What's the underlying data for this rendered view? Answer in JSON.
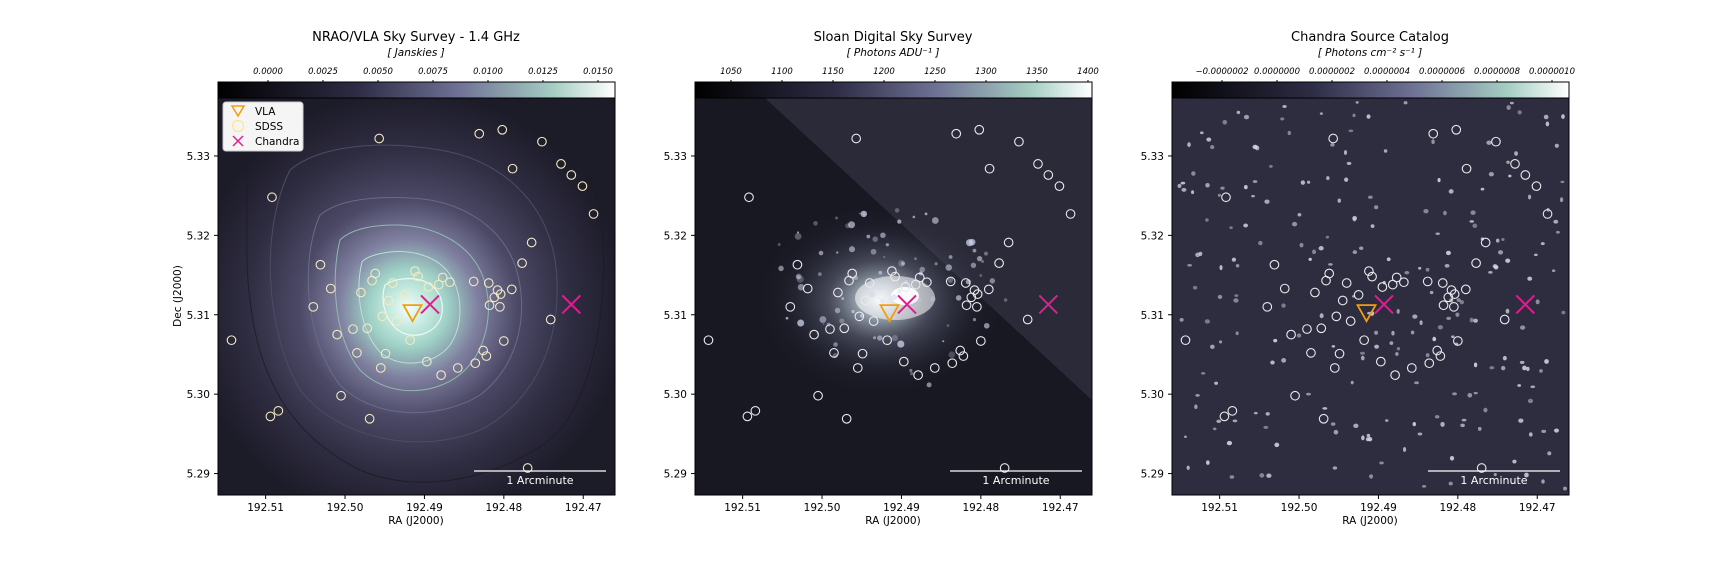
{
  "figure": {
    "shared": {
      "scalebar_label": "1 Arcminute"
    }
  },
  "panels": [
    {
      "id": "vla",
      "title": "NRAO/VLA Sky Survey - 1.4 GHz",
      "unit_label": "[ Janskies ]",
      "colorbar_ticks": [
        "0.0000",
        "0.0025",
        "0.0050",
        "0.0075",
        "0.0100",
        "0.0125",
        "0.0150"
      ],
      "ra_ticks": [
        "192.51",
        "192.50",
        "192.49",
        "192.48",
        "192.47"
      ],
      "dec_ticks": [
        "5.33",
        "5.32",
        "5.31",
        "5.30",
        "5.29"
      ],
      "xlabel": "RA (J2000)",
      "ylabel": "Dec (J2000)",
      "legend": [
        {
          "label": "VLA",
          "marker": "triangle-down",
          "color": "#f59e0b"
        },
        {
          "label": "SDSS",
          "marker": "circle",
          "color": "#fde68a"
        },
        {
          "label": "Chandra",
          "marker": "x",
          "color": "#e11d8f"
        }
      ]
    },
    {
      "id": "sdss",
      "title": "Sloan Digital Sky Survey",
      "unit_label": "[ Photons ADU⁻¹ ]",
      "colorbar_ticks": [
        "1050",
        "1100",
        "1150",
        "1200",
        "1250",
        "1300",
        "1350",
        "1400"
      ],
      "ra_ticks": [
        "192.51",
        "192.50",
        "192.49",
        "192.48",
        "192.47"
      ],
      "dec_ticks": [
        "5.33",
        "5.32",
        "5.31",
        "5.30",
        "5.29"
      ],
      "xlabel": "RA (J2000)"
    },
    {
      "id": "chandra",
      "title": "Chandra Source Catalog",
      "unit_label": "[ Photons cm⁻² s⁻¹ ]",
      "colorbar_ticks": [
        "−0.0000002",
        "0.0000000",
        "0.0000002",
        "0.0000004",
        "0.0000006",
        "0.0000008",
        "0.0000010"
      ],
      "ra_ticks": [
        "192.51",
        "192.50",
        "192.49",
        "192.48",
        "192.47"
      ],
      "dec_ticks": [
        "5.33",
        "5.32",
        "5.31",
        "5.30",
        "5.29"
      ],
      "xlabel": "RA (J2000)"
    }
  ],
  "sources": {
    "vla": [
      [
        192.4915,
        5.3097
      ]
    ],
    "chandra": [
      [
        192.4893,
        5.3113
      ],
      [
        192.4715,
        5.3113
      ]
    ],
    "sdss": [
      [
        192.5143,
        5.3068
      ],
      [
        192.5092,
        5.3248
      ],
      [
        192.5094,
        5.2972
      ],
      [
        192.5084,
        5.2979
      ],
      [
        192.4957,
        5.3322
      ],
      [
        192.4925,
        5.3125
      ],
      [
        192.4962,
        5.3152
      ],
      [
        192.4966,
        5.3143
      ],
      [
        192.498,
        5.3128
      ],
      [
        192.4945,
        5.3118
      ],
      [
        192.4953,
        5.3098
      ],
      [
        192.4935,
        5.3092
      ],
      [
        192.4972,
        5.3083
      ],
      [
        192.4985,
        5.3052
      ],
      [
        192.4955,
        5.3033
      ],
      [
        192.4949,
        5.3051
      ],
      [
        192.4918,
        5.3068
      ],
      [
        192.4897,
        5.3041
      ],
      [
        192.4879,
        5.3024
      ],
      [
        192.4858,
        5.3033
      ],
      [
        192.4836,
        5.3039
      ],
      [
        192.4826,
        5.3055
      ],
      [
        192.4822,
        5.3048
      ],
      [
        192.48,
        5.3067
      ],
      [
        192.4838,
        5.3142
      ],
      [
        192.4819,
        5.314
      ],
      [
        192.4808,
        5.3131
      ],
      [
        192.4804,
        5.3126
      ],
      [
        192.4812,
        5.3122
      ],
      [
        192.4818,
        5.3112
      ],
      [
        192.4805,
        5.311
      ],
      [
        192.479,
        5.3132
      ],
      [
        192.4777,
        5.3165
      ],
      [
        192.4765,
        5.3191
      ],
      [
        192.4877,
        5.3147
      ],
      [
        192.4868,
        5.3141
      ],
      [
        192.4882,
        5.3138
      ],
      [
        192.4895,
        5.3135
      ],
      [
        192.4908,
        5.3148
      ],
      [
        192.4912,
        5.3155
      ],
      [
        192.494,
        5.314
      ],
      [
        192.5031,
        5.3163
      ],
      [
        192.5018,
        5.3133
      ],
      [
        192.504,
        5.311
      ],
      [
        192.5005,
        5.2998
      ],
      [
        192.4969,
        5.2969
      ],
      [
        192.4831,
        5.3328
      ],
      [
        192.4802,
        5.3333
      ],
      [
        192.4789,
        5.3284
      ],
      [
        192.4752,
        5.3318
      ],
      [
        192.4728,
        5.329
      ],
      [
        192.4715,
        5.3276
      ],
      [
        192.4701,
        5.3262
      ],
      [
        192.4687,
        5.3227
      ],
      [
        192.4741,
        5.3094
      ],
      [
        192.477,
        5.2907
      ],
      [
        192.499,
        5.3082
      ],
      [
        192.501,
        5.3075
      ]
    ]
  },
  "colors": {
    "vla_marker": "#f59e0b",
    "sdss_marker": "#fde68a",
    "chandra_marker": "#e11d8f",
    "scalebar": "#ffffff",
    "colormap_low": "#000000",
    "colormap_mid": "#3b3a5a",
    "colormap_high": "#ffffff"
  }
}
